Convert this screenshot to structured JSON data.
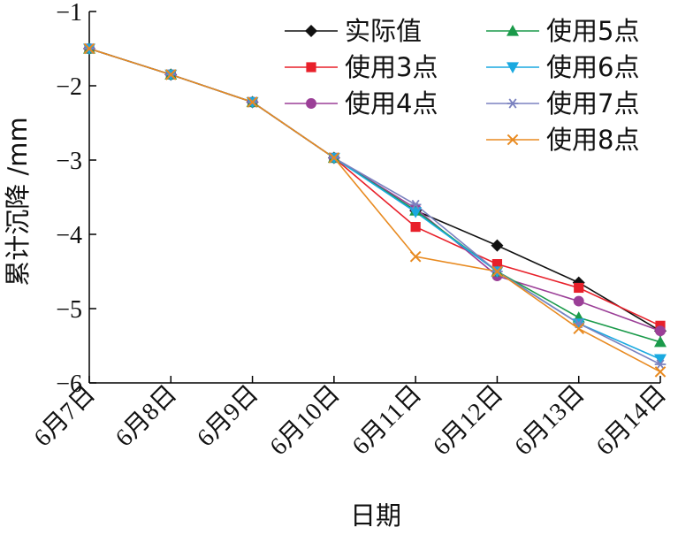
{
  "chart_data": {
    "type": "line",
    "title": "",
    "xlabel": "日期",
    "ylabel": "累计沉降 /mm",
    "categories": [
      "6月7日",
      "6月8日",
      "6月9日",
      "6月10日",
      "6月11日",
      "6月12日",
      "6月13日",
      "6月14日"
    ],
    "ylim": [
      -6,
      -1
    ],
    "yticks": [
      -1,
      -2,
      -3,
      -4,
      -5,
      -6
    ],
    "ytick_labels": [
      "−1",
      "−2",
      "−3",
      "−4",
      "−5",
      "−6"
    ],
    "grid": false,
    "legend_position": "top-right",
    "series": [
      {
        "name": "实际值",
        "color": "#111111",
        "marker": "diamond",
        "values": [
          -1.5,
          -1.85,
          -2.22,
          -2.97,
          -3.68,
          -4.15,
          -4.65,
          -5.3
        ]
      },
      {
        "name": "使用3点",
        "color": "#e8202a",
        "marker": "square",
        "values": [
          -1.5,
          -1.85,
          -2.22,
          -2.97,
          -3.9,
          -4.4,
          -4.72,
          -5.23
        ]
      },
      {
        "name": "使用4点",
        "color": "#9b3f97",
        "marker": "circle",
        "values": [
          -1.5,
          -1.85,
          -2.22,
          -2.97,
          -3.65,
          -4.56,
          -4.9,
          -5.3
        ]
      },
      {
        "name": "使用5点",
        "color": "#1a9a4a",
        "marker": "triangle-up",
        "values": [
          -1.5,
          -1.85,
          -2.22,
          -2.97,
          -3.68,
          -4.5,
          -5.12,
          -5.45
        ]
      },
      {
        "name": "使用6点",
        "color": "#1aa9e0",
        "marker": "triangle-down",
        "values": [
          -1.5,
          -1.85,
          -2.22,
          -2.97,
          -3.7,
          -4.5,
          -5.2,
          -5.68
        ]
      },
      {
        "name": "使用7点",
        "color": "#7b82c0",
        "marker": "asterisk",
        "values": [
          -1.5,
          -1.85,
          -2.22,
          -2.97,
          -3.6,
          -4.5,
          -5.2,
          -5.75
        ]
      },
      {
        "name": "使用8点",
        "color": "#e88a20",
        "marker": "x",
        "values": [
          -1.5,
          -1.85,
          -2.22,
          -2.97,
          -4.3,
          -4.5,
          -5.27,
          -5.85
        ]
      }
    ]
  }
}
